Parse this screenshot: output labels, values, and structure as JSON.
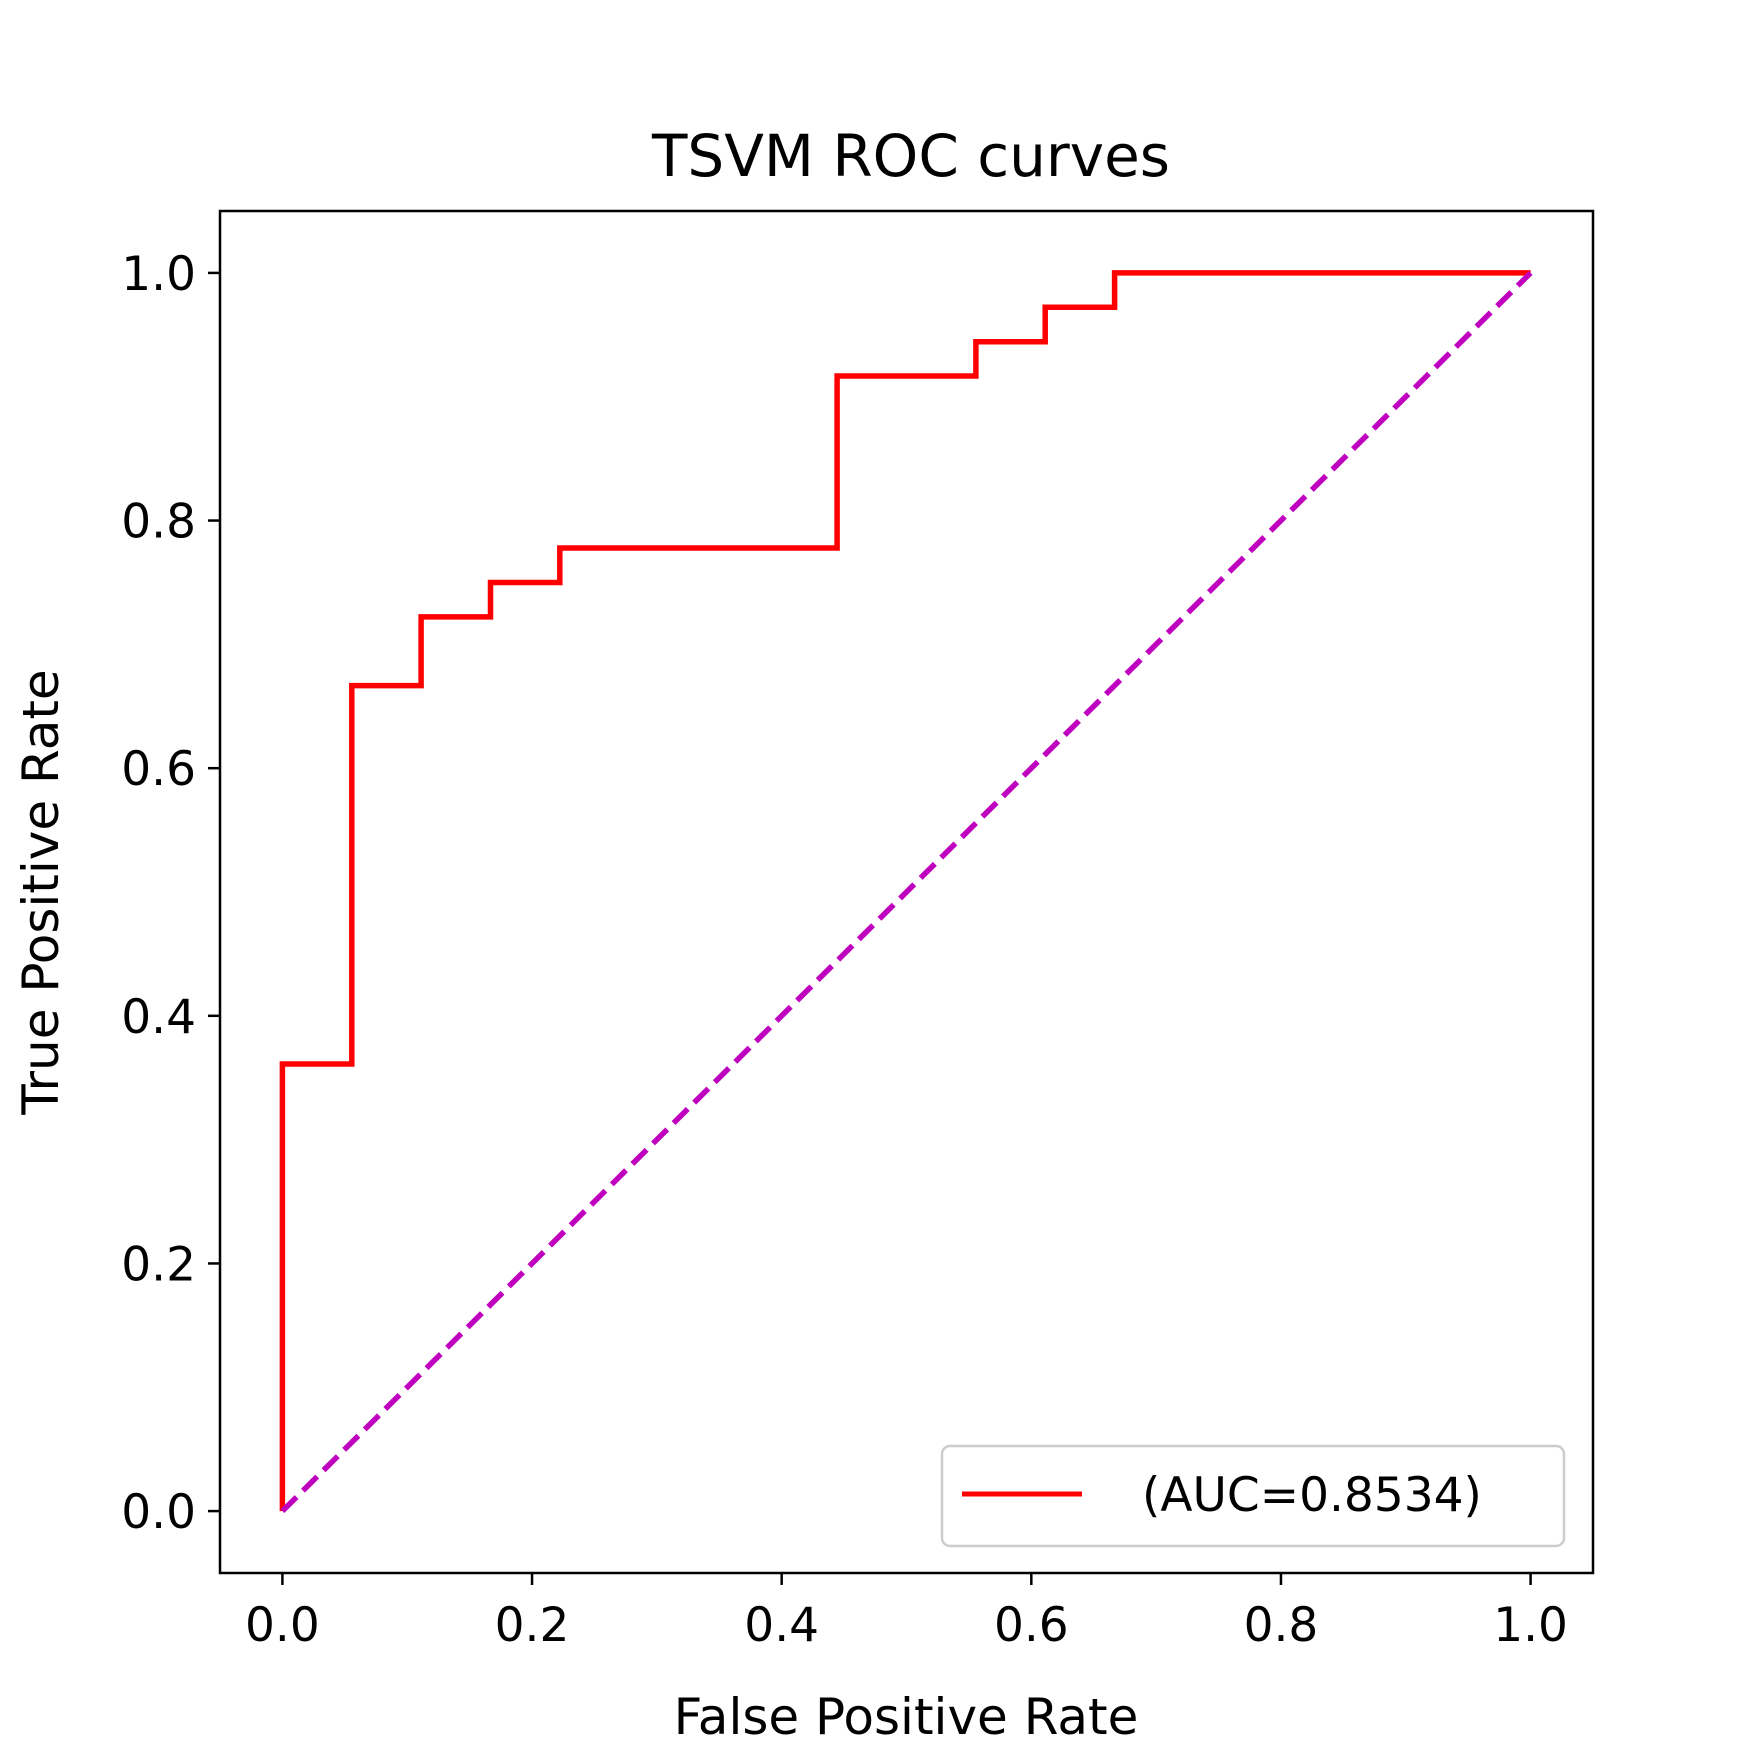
{
  "chart_data": {
    "type": "line",
    "title": "TSVM ROC curves",
    "xlabel": "False Positive Rate",
    "ylabel": "True Positive Rate",
    "xlim": [
      -0.05,
      1.05
    ],
    "ylim": [
      -0.05,
      1.05
    ],
    "xticks": [
      0.0,
      0.2,
      0.4,
      0.6,
      0.8,
      1.0
    ],
    "yticks": [
      0.0,
      0.2,
      0.4,
      0.6,
      0.8,
      1.0
    ],
    "xtick_labels": [
      "0.0",
      "0.2",
      "0.4",
      "0.6",
      "0.8",
      "1.0"
    ],
    "ytick_labels": [
      "0.0",
      "0.2",
      "0.4",
      "0.6",
      "0.8",
      "1.0"
    ],
    "grid": false,
    "legend_position": "lower-right",
    "series": [
      {
        "name": "(AUC=0.8534)",
        "color": "#ff0000",
        "style": "solid",
        "step": true,
        "x": [
          0.0,
          0.0,
          0.0556,
          0.0556,
          0.1111,
          0.1111,
          0.1667,
          0.1667,
          0.2222,
          0.2222,
          0.4444,
          0.4444,
          0.5556,
          0.5556,
          0.6111,
          0.6111,
          0.6667,
          0.6667,
          1.0
        ],
        "y": [
          0.0,
          0.3611,
          0.3611,
          0.6667,
          0.6667,
          0.7222,
          0.7222,
          0.75,
          0.75,
          0.7778,
          0.7778,
          0.9167,
          0.9167,
          0.9444,
          0.9444,
          0.9722,
          0.9722,
          1.0,
          1.0
        ]
      },
      {
        "color": "#bf00bf",
        "style": "dashed",
        "x": [
          0.0,
          1.0
        ],
        "y": [
          0.0,
          1.0
        ]
      }
    ]
  }
}
